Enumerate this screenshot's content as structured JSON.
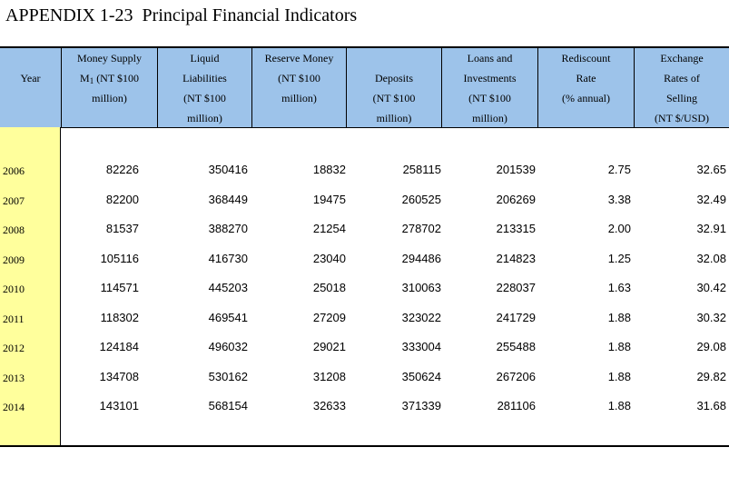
{
  "title": "APPENDIX 1-23  Principal Financial Indicators",
  "headers": {
    "year": [
      "",
      "Year"
    ],
    "money_supply": {
      "line1": "Money Supply",
      "line2_prefix": "M",
      "line2_sub": "1",
      "line2_suffix": " (NT $100",
      "line3": "million)"
    },
    "liquid": [
      "Liquid",
      "Liabilities",
      "(NT $100",
      "million)"
    ],
    "reserve": [
      "Reserve Money",
      "(NT $100",
      "million)"
    ],
    "deposits": [
      "",
      "Deposits",
      "(NT $100",
      "million)"
    ],
    "loans": [
      "Loans and",
      "Investments",
      "(NT $100",
      "million)"
    ],
    "rediscount": [
      "Rediscount",
      "Rate",
      "(% annual)"
    ],
    "exchange": [
      "Exchange",
      "Rates of",
      "Selling",
      "(NT $/USD)"
    ]
  },
  "rows": [
    {
      "year": "2006",
      "m1": "82226",
      "liquid": "350416",
      "reserve": "18832",
      "deposits": "258115",
      "loans": "201539",
      "rate": "2.75",
      "fx": "32.65"
    },
    {
      "year": "2007",
      "m1": "82200",
      "liquid": "368449",
      "reserve": "19475",
      "deposits": "260525",
      "loans": "206269",
      "rate": "3.38",
      "fx": "32.49"
    },
    {
      "year": "2008",
      "m1": "81537",
      "liquid": "388270",
      "reserve": "21254",
      "deposits": "278702",
      "loans": "213315",
      "rate": "2.00",
      "fx": "32.91"
    },
    {
      "year": "2009",
      "m1": "105116",
      "liquid": "416730",
      "reserve": "23040",
      "deposits": "294486",
      "loans": "214823",
      "rate": "1.25",
      "fx": "32.08"
    },
    {
      "year": "2010",
      "m1": "114571",
      "liquid": "445203",
      "reserve": "25018",
      "deposits": "310063",
      "loans": "228037",
      "rate": "1.63",
      "fx": "30.42"
    },
    {
      "year": "2011",
      "m1": "118302",
      "liquid": "469541",
      "reserve": "27209",
      "deposits": "323022",
      "loans": "241729",
      "rate": "1.88",
      "fx": "30.32"
    },
    {
      "year": "2012",
      "m1": "124184",
      "liquid": "496032",
      "reserve": "29021",
      "deposits": "333004",
      "loans": "255488",
      "rate": "1.88",
      "fx": "29.08"
    },
    {
      "year": "2013",
      "m1": "134708",
      "liquid": "530162",
      "reserve": "31208",
      "deposits": "350624",
      "loans": "267206",
      "rate": "1.88",
      "fx": "29.82"
    },
    {
      "year": "2014",
      "m1": "143101",
      "liquid": "568154",
      "reserve": "32633",
      "deposits": "371339",
      "loans": "281106",
      "rate": "1.88",
      "fx": "31.68"
    }
  ],
  "colors": {
    "header_bg": "#9dc3ea",
    "year_column_bg": "#ffff9c"
  }
}
